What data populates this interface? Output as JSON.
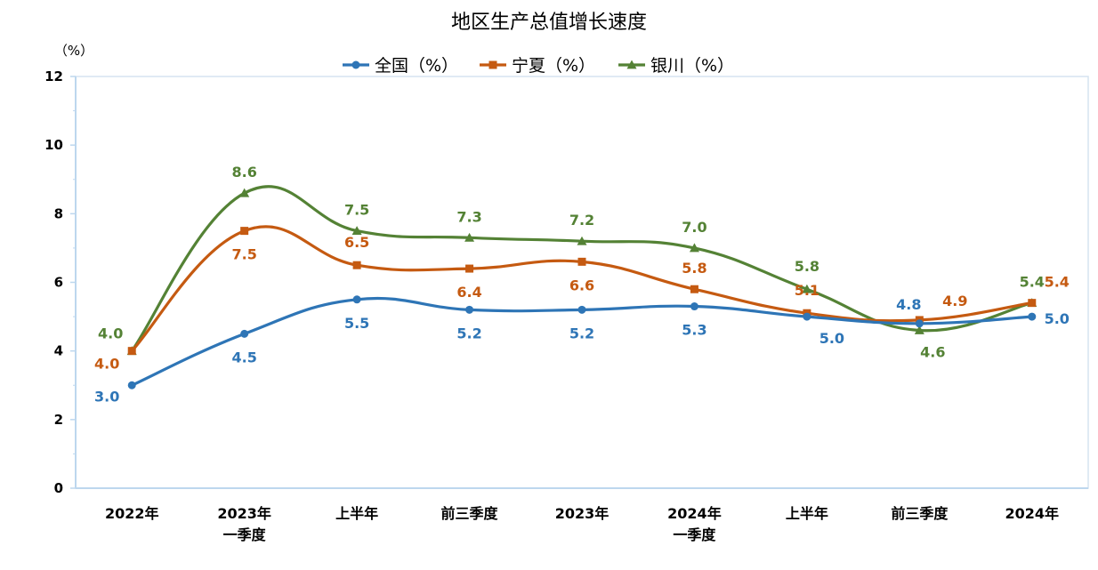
{
  "chart_data": {
    "type": "line",
    "title": "地区生产总值增长速度",
    "yunit": "（%）",
    "categories": [
      [
        "2022年"
      ],
      [
        "2023年",
        "一季度"
      ],
      [
        "上半年"
      ],
      [
        "前三季度"
      ],
      [
        "2023年"
      ],
      [
        "2024年",
        "一季度"
      ],
      [
        "上半年"
      ],
      [
        "前三季度"
      ],
      [
        "2024年"
      ]
    ],
    "ylim": [
      0,
      12
    ],
    "yticks": [
      0,
      2,
      4,
      6,
      8,
      10,
      12
    ],
    "grid": false,
    "legend_position": "top-center",
    "series": [
      {
        "name": "全国（%）",
        "color": "#2e75b6",
        "marker": "circle",
        "values": [
          3.0,
          4.5,
          5.5,
          5.2,
          5.2,
          5.3,
          5.0,
          4.8,
          5.0
        ],
        "labels": [
          "3.0",
          "4.5",
          "5.5",
          "5.2",
          "5.2",
          "5.3",
          "5.0",
          "4.8",
          "5.0"
        ]
      },
      {
        "name": "宁夏（%）",
        "color": "#c55a11",
        "marker": "square",
        "values": [
          4.0,
          7.5,
          6.5,
          6.4,
          6.6,
          5.8,
          5.1,
          4.9,
          5.4
        ],
        "labels": [
          "4.0",
          "7.5",
          "6.5",
          "6.4",
          "6.6",
          "5.8",
          "5.1",
          "4.9",
          "5.4"
        ]
      },
      {
        "name": "银川（%）",
        "color": "#548235",
        "marker": "triangle",
        "values": [
          4.0,
          8.6,
          7.5,
          7.3,
          7.2,
          7.0,
          5.8,
          4.6,
          5.4
        ],
        "labels": [
          "4.0",
          "8.6",
          "7.5",
          "7.3",
          "7.2",
          "7.0",
          "5.8",
          "4.6",
          "5.4"
        ]
      }
    ]
  }
}
